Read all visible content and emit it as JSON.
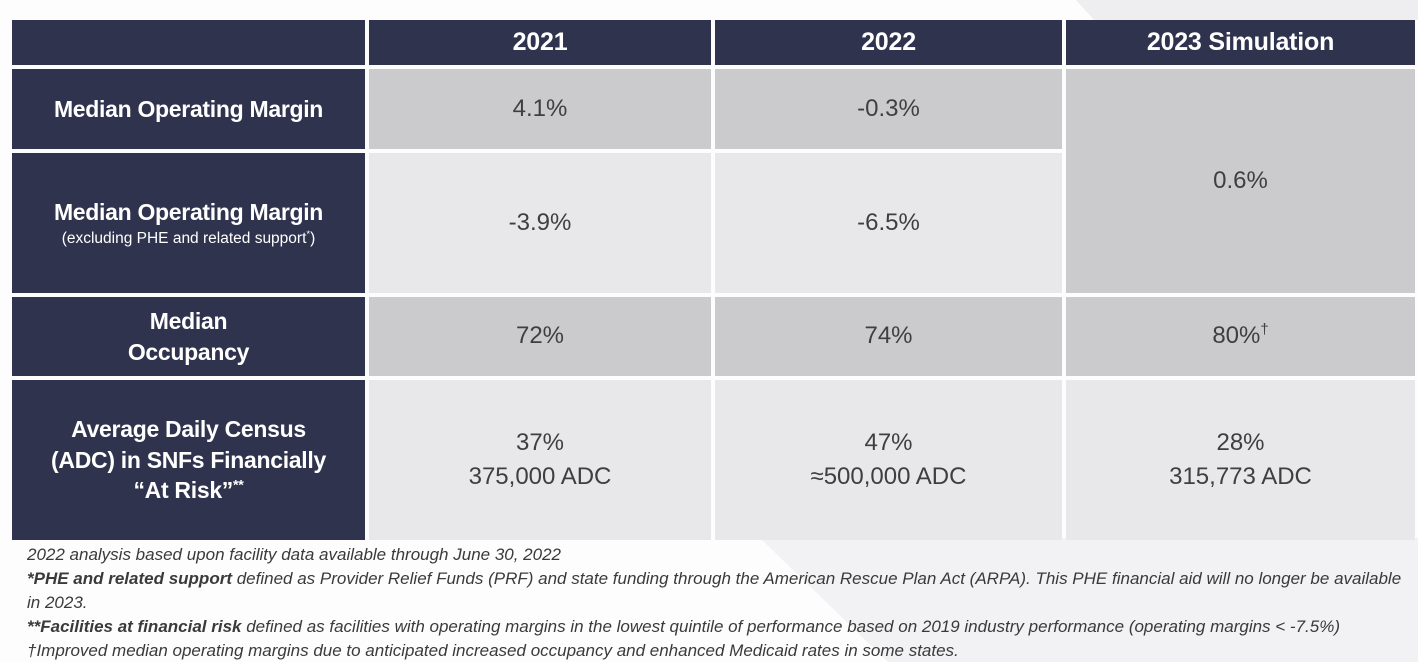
{
  "table": {
    "header": {
      "empty": "",
      "y2021": "2021",
      "y2022": "2022",
      "y2023": "2023 Simulation"
    },
    "r1": {
      "label": "Median Operating Margin",
      "v2021": "4.1%",
      "v2022": "-0.3%"
    },
    "r2": {
      "label": "Median Operating Margin",
      "sub_pre": "(excluding PHE and related support",
      "sub_sup": "*",
      "sub_post": ")",
      "v2021": "-3.9%",
      "v2022": "-6.5%"
    },
    "merged": {
      "v2023": "0.6%"
    },
    "r3": {
      "label": "Median\nOccupancy",
      "v2021": "72%",
      "v2022": "74%",
      "v2023": "80%",
      "v2023_sup": "†"
    },
    "r4": {
      "label": "Average Daily Census\n(ADC) in SNFs Financially\n“At Risk”",
      "label_sup": "**",
      "v2021": "37%\n375,000 ADC",
      "v2022": "47%\n≈500,000 ADC",
      "v2023": "28%\n315,773 ADC"
    }
  },
  "footnotes": [
    {
      "prefix": "",
      "text": "2022 analysis based upon facility data available through June 30, 2022"
    },
    {
      "prefix": "*PHE and related support",
      "text": " defined as Provider Relief Funds (PRF) and state funding through the American Rescue Plan Act (ARPA). This PHE financial aid will no longer be available in 2023."
    },
    {
      "prefix": "**Facilities at financial risk",
      "text": " defined as facilities with operating margins in the lowest quintile of performance based on 2019 industry performance (operating margins < -7.5%)"
    },
    {
      "prefix": "",
      "text": "†Improved median operating margins due to anticipated increased occupancy and enhanced Medicaid rates in some states."
    }
  ],
  "colors": {
    "navy": "#2f334d",
    "gray_medium": "#cbcbcd",
    "gray_light": "#e8e7e9",
    "value_text": "#3f3f3f",
    "corner_band": "#eeedf0",
    "diagonal_shape": "#f2f1f3"
  }
}
